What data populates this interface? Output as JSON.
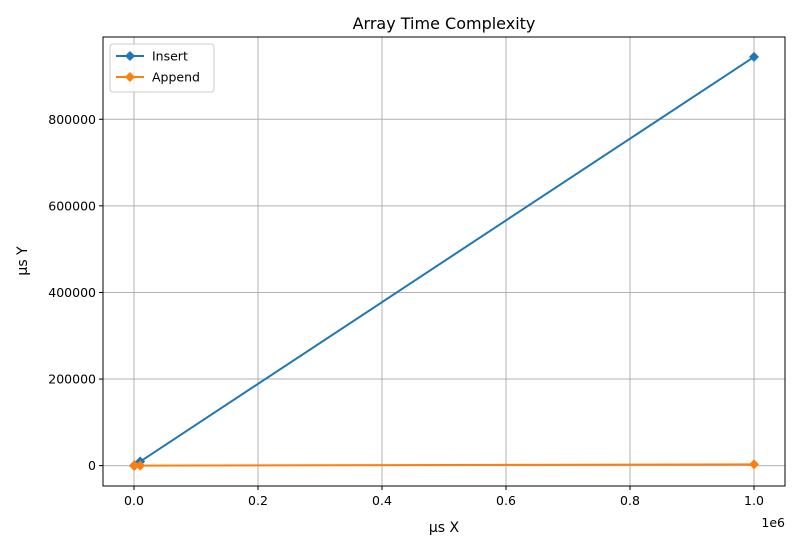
{
  "chart_data": {
    "type": "line",
    "title": "Array Time Complexity",
    "xlabel": "µs X",
    "ylabel": "µs Y",
    "x_offset_text": "1e6",
    "xlim": [
      -50000,
      1050000
    ],
    "ylim": [
      -47000,
      990000
    ],
    "x_ticks": [
      0,
      200000,
      400000,
      600000,
      800000,
      1000000
    ],
    "x_tick_labels": [
      "0.0",
      "0.2",
      "0.4",
      "0.6",
      "0.8",
      "1.0"
    ],
    "y_ticks": [
      0,
      200000,
      400000,
      600000,
      800000
    ],
    "y_tick_labels": [
      "0",
      "200000",
      "400000",
      "600000",
      "800000"
    ],
    "grid": true,
    "legend_position": "upper-left",
    "series": [
      {
        "name": "Insert",
        "color": "#1f77b4",
        "marker": "diamond",
        "x": [
          0,
          1000,
          10000,
          1000000
        ],
        "y": [
          0,
          1000,
          9500,
          944000
        ]
      },
      {
        "name": "Append",
        "color": "#ff7f0e",
        "marker": "diamond",
        "x": [
          0,
          1000,
          10000,
          1000000
        ],
        "y": [
          0,
          3,
          30,
          3000
        ]
      }
    ]
  }
}
